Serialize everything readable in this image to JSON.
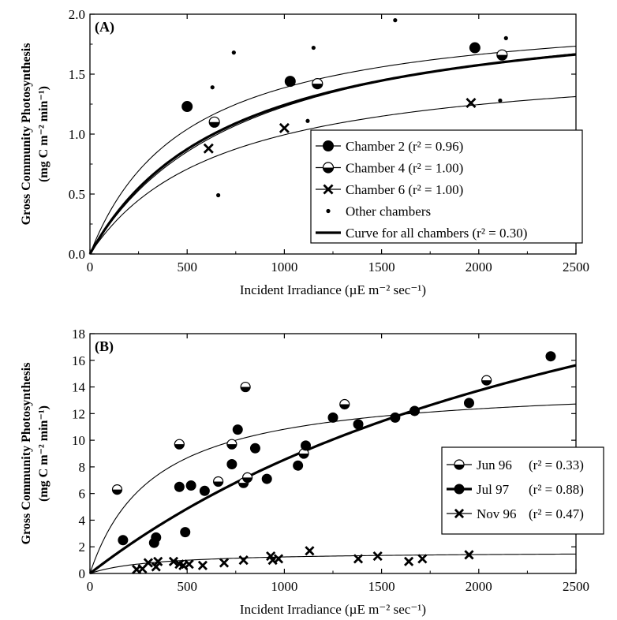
{
  "chart_data": [
    {
      "type": "scatter",
      "panel_label": "(A)",
      "xlabel": "Incident Irradiance (µE m⁻² sec⁻¹)",
      "ylabel_line1": "Gross Community Photosynthesis",
      "ylabel_line2": "(mg C m⁻² min⁻¹)",
      "xlim": [
        0,
        2500
      ],
      "ylim": [
        0,
        2.0
      ],
      "xticks": [
        "0",
        "500",
        "1000",
        "1500",
        "2000",
        "2500"
      ],
      "yticks": [
        "0.0",
        "0.5",
        "1.0",
        "1.5",
        "2.0"
      ],
      "legend_position": "bottom-right",
      "series": [
        {
          "name": "Chamber 2 (r² = 0.96)",
          "marker": "filled-circle",
          "points": [
            [
              500,
              1.23
            ],
            [
              1030,
              1.44
            ],
            [
              1980,
              1.72
            ]
          ],
          "curve": {
            "pmax": 2.08,
            "k": 500
          }
        },
        {
          "name": "Chamber 4 (r² = 1.00)",
          "marker": "open-circle",
          "points": [
            [
              640,
              1.1
            ],
            [
              1170,
              1.42
            ],
            [
              2120,
              1.66
            ]
          ],
          "curve": {
            "pmax": 2.2,
            "k": 790
          }
        },
        {
          "name": "Chamber 6 (r² = 1.00)",
          "marker": "x",
          "points": [
            [
              610,
              0.88
            ],
            [
              1000,
              1.05
            ],
            [
              1960,
              1.26
            ]
          ],
          "curve": {
            "pmax": 1.67,
            "k": 680
          }
        },
        {
          "name": "Other chambers",
          "marker": "dot",
          "points": [
            [
              630,
              1.39
            ],
            [
              660,
              0.49
            ],
            [
              740,
              1.68
            ],
            [
              1150,
              1.72
            ],
            [
              1120,
              1.11
            ],
            [
              1570,
              1.95
            ],
            [
              2110,
              1.28
            ],
            [
              2140,
              1.8
            ]
          ]
        },
        {
          "name": "Curve for all chambers (r² = 0.30)",
          "marker": "none",
          "curve": {
            "pmax": 2.15,
            "k": 730
          },
          "thick": true
        }
      ]
    },
    {
      "type": "scatter",
      "panel_label": "(B)",
      "xlabel": "Incident Irradiance (µE m⁻² sec⁻¹)",
      "ylabel_line1": "Gross Community Photosynthesis",
      "ylabel_line2": "(mg C m⁻² min⁻¹)",
      "xlim": [
        0,
        2500
      ],
      "ylim": [
        0,
        18
      ],
      "xticks": [
        "0",
        "500",
        "1000",
        "1500",
        "2000",
        "2500"
      ],
      "yticks": [
        "0",
        "2",
        "4",
        "6",
        "8",
        "10",
        "12",
        "14",
        "16",
        "18"
      ],
      "legend_position": "right",
      "series": [
        {
          "name": "Jun 96",
          "r2": "(r² = 0.33)",
          "marker": "open-circle",
          "points": [
            [
              140,
              6.3
            ],
            [
              460,
              9.7
            ],
            [
              660,
              6.9
            ],
            [
              730,
              9.7
            ],
            [
              790,
              6.8
            ],
            [
              800,
              14.0
            ],
            [
              810,
              7.2
            ],
            [
              1100,
              9.0
            ],
            [
              1310,
              12.7
            ],
            [
              2040,
              14.5
            ]
          ],
          "curve": {
            "pmax": 14.4,
            "k": 330
          }
        },
        {
          "name": "Jul 97",
          "r2": "(r² = 0.88)",
          "marker": "filled-circle",
          "points": [
            [
              170,
              2.5
            ],
            [
              330,
              2.3
            ],
            [
              340,
              2.7
            ],
            [
              460,
              6.5
            ],
            [
              490,
              3.1
            ],
            [
              520,
              6.6
            ],
            [
              590,
              6.2
            ],
            [
              730,
              8.2
            ],
            [
              760,
              10.8
            ],
            [
              850,
              9.4
            ],
            [
              910,
              7.1
            ],
            [
              1070,
              8.1
            ],
            [
              1110,
              9.6
            ],
            [
              1250,
              11.7
            ],
            [
              1380,
              11.2
            ],
            [
              1570,
              11.7
            ],
            [
              1670,
              12.2
            ],
            [
              1950,
              12.8
            ],
            [
              2370,
              16.3
            ]
          ],
          "curve": {
            "pmax": 35,
            "k": 3100
          },
          "thick": true
        },
        {
          "name": "Nov 96",
          "r2": "(r² = 0.47)",
          "marker": "x",
          "points": [
            [
              240,
              0.3
            ],
            [
              270,
              0.35
            ],
            [
              300,
              0.8
            ],
            [
              340,
              0.5
            ],
            [
              350,
              0.9
            ],
            [
              430,
              0.9
            ],
            [
              460,
              0.7
            ],
            [
              480,
              0.6
            ],
            [
              510,
              0.7
            ],
            [
              580,
              0.6
            ],
            [
              690,
              0.8
            ],
            [
              790,
              1.0
            ],
            [
              930,
              1.3
            ],
            [
              940,
              1.0
            ],
            [
              970,
              1.1
            ],
            [
              1130,
              1.7
            ],
            [
              1380,
              1.1
            ],
            [
              1480,
              1.3
            ],
            [
              1640,
              0.9
            ],
            [
              1710,
              1.1
            ],
            [
              1950,
              1.4
            ]
          ],
          "curve": {
            "pmax": 1.65,
            "k": 330
          }
        }
      ]
    }
  ]
}
